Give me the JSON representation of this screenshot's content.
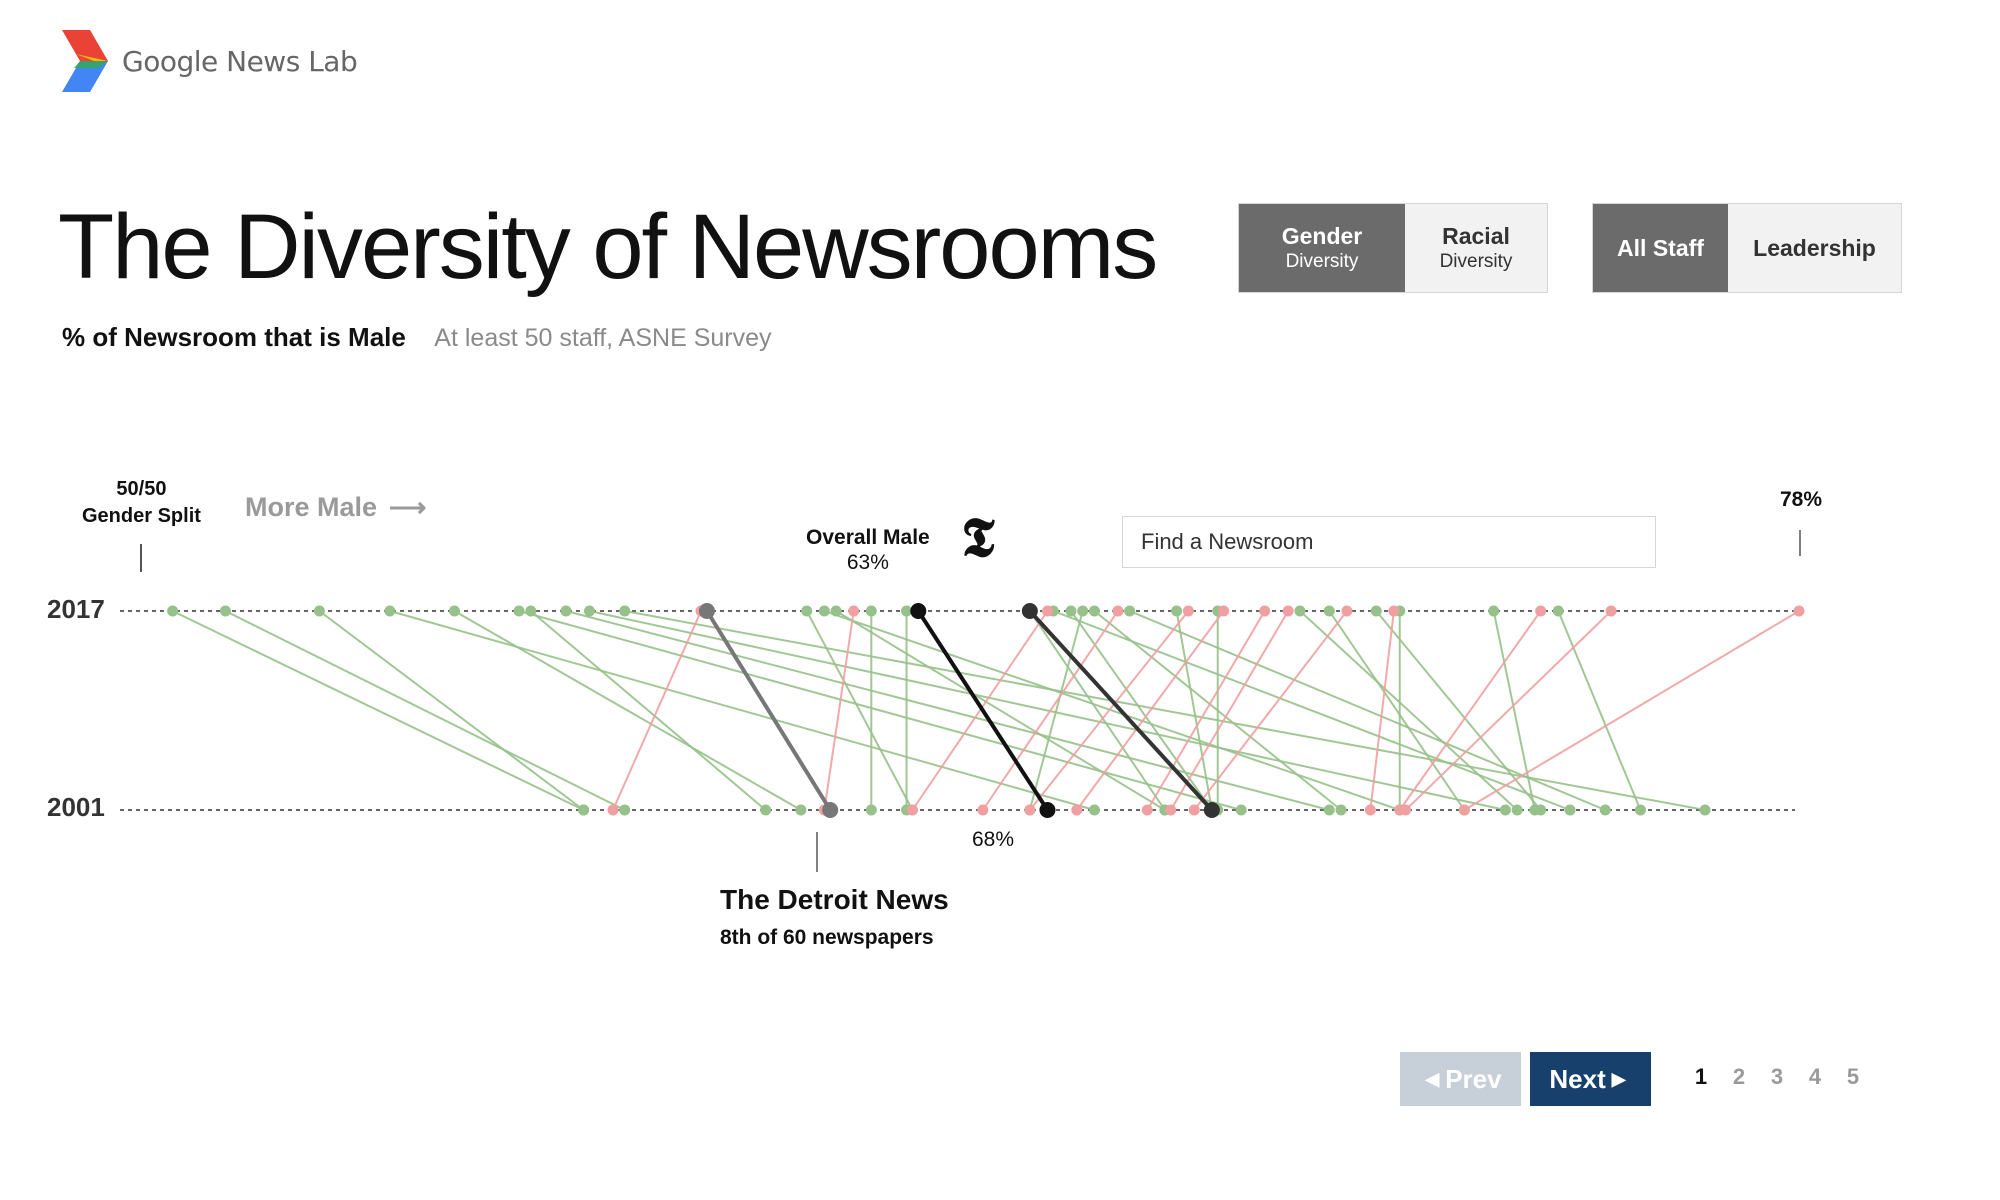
{
  "brand": {
    "logo_text": "Google News Lab"
  },
  "title": "The Diversity of Newsrooms",
  "subtitle": {
    "main": "% of Newsroom that is Male",
    "note": "At least 50 staff, ASNE Survey"
  },
  "toggles": {
    "diversity": [
      {
        "line1": "Gender",
        "line2": "Diversity",
        "active": true
      },
      {
        "line1": "Racial",
        "line2": "Diversity",
        "active": false
      }
    ],
    "staff": [
      {
        "label": "All Staff",
        "active": true
      },
      {
        "label": "Leadership",
        "active": false
      }
    ]
  },
  "labels": {
    "gender_split_1": "50/50",
    "gender_split_2": "Gender Split",
    "more_male": "More Male",
    "overall_male": "Overall Male",
    "overall_male_value": "63%",
    "max_value": "78%",
    "nyt_2001_value": "68%"
  },
  "search": {
    "placeholder": "Find a Newsroom"
  },
  "highlight": {
    "name": "The Detroit News",
    "rank": "8th of 60 newspapers"
  },
  "pagination": {
    "prev": "Prev",
    "next": "Next",
    "pages": [
      "1",
      "2",
      "3",
      "4",
      "5"
    ],
    "current": "1"
  },
  "colors": {
    "increase": "#97c18a",
    "decrease": "#f0a0a0",
    "highlight": "#777777",
    "overall": "#111111",
    "nyt": "#333333"
  },
  "chart_data": {
    "type": "slope",
    "x_label": "% of Newsroom that is Male",
    "xlim": [
      50,
      78
    ],
    "years": [
      "2017",
      "2001"
    ],
    "newsrooms": [
      {
        "v2017": 50.3,
        "v2001": 57.3,
        "status": "green"
      },
      {
        "v2017": 51.2,
        "v2001": 58.0,
        "status": "green"
      },
      {
        "v2017": 52.8,
        "v2001": 57.3,
        "status": "green"
      },
      {
        "v2017": 54.0,
        "v2001": 66.0,
        "status": "green"
      },
      {
        "v2017": 55.1,
        "v2001": 61.0,
        "status": "green"
      },
      {
        "v2017": 56.2,
        "v2001": 68.5,
        "status": "green"
      },
      {
        "v2017": 56.4,
        "v2001": 60.4,
        "status": "green"
      },
      {
        "v2017": 57.0,
        "v2001": 70.0,
        "status": "green"
      },
      {
        "v2017": 57.4,
        "v2001": 73.0,
        "status": "green"
      },
      {
        "v2017": 58.0,
        "v2001": 76.4,
        "status": "green"
      },
      {
        "v2017": 61.1,
        "v2001": 62.9,
        "status": "green"
      },
      {
        "v2017": 61.4,
        "v2001": 71.2,
        "status": "green"
      },
      {
        "v2017": 61.6,
        "v2001": 67.2,
        "status": "green"
      },
      {
        "v2017": 62.2,
        "v2001": 62.2,
        "status": "green"
      },
      {
        "v2017": 62.8,
        "v2001": 62.8,
        "status": "green"
      },
      {
        "v2017": 64.9,
        "v2001": 67.2,
        "status": "green"
      },
      {
        "v2017": 65.3,
        "v2001": 74.1,
        "status": "green"
      },
      {
        "v2017": 65.6,
        "v2001": 68.0,
        "status": "green"
      },
      {
        "v2017": 66.6,
        "v2001": 74.7,
        "status": "green"
      },
      {
        "v2017": 67.4,
        "v2001": 68.0,
        "status": "green"
      },
      {
        "v2017": 68.1,
        "v2001": 68.1,
        "status": "green"
      },
      {
        "v2017": 69.5,
        "v2001": 73.2,
        "status": "green"
      },
      {
        "v2017": 70.0,
        "v2001": 72.3,
        "status": "green"
      },
      {
        "v2017": 70.8,
        "v2001": 73.6,
        "status": "green"
      },
      {
        "v2017": 71.2,
        "v2001": 71.2,
        "status": "green"
      },
      {
        "v2017": 72.8,
        "v2001": 73.5,
        "status": "green"
      },
      {
        "v2017": 73.9,
        "v2001": 75.3,
        "status": "green"
      },
      {
        "v2017": 66.0,
        "v2001": 70.2,
        "status": "green"
      },
      {
        "v2017": 65.8,
        "v2001": 64.9,
        "status": "green"
      },
      {
        "v2017": 59.3,
        "v2001": 57.8,
        "status": "red"
      },
      {
        "v2017": 61.9,
        "v2001": 61.4,
        "status": "red"
      },
      {
        "v2017": 65.2,
        "v2001": 62.9,
        "status": "red"
      },
      {
        "v2017": 66.4,
        "v2001": 64.1,
        "status": "red"
      },
      {
        "v2017": 67.6,
        "v2001": 64.9,
        "status": "red"
      },
      {
        "v2017": 68.2,
        "v2001": 65.7,
        "status": "red"
      },
      {
        "v2017": 68.9,
        "v2001": 66.9,
        "status": "red"
      },
      {
        "v2017": 69.3,
        "v2001": 67.3,
        "status": "red"
      },
      {
        "v2017": 70.3,
        "v2001": 67.7,
        "status": "red"
      },
      {
        "v2017": 71.1,
        "v2001": 70.7,
        "status": "red"
      },
      {
        "v2017": 73.6,
        "v2001": 71.2,
        "status": "red"
      },
      {
        "v2017": 74.8,
        "v2001": 71.3,
        "status": "red"
      },
      {
        "v2017": 78.0,
        "v2001": 72.3,
        "status": "red"
      }
    ],
    "highlighted": {
      "name": "The Detroit News",
      "v2017": 59.4,
      "v2001": 61.5
    },
    "overall": {
      "name": "Overall Male",
      "v2017": 63,
      "v2001": 65.2
    },
    "nyt": {
      "v2017": 64.9,
      "v2001": 68
    }
  }
}
